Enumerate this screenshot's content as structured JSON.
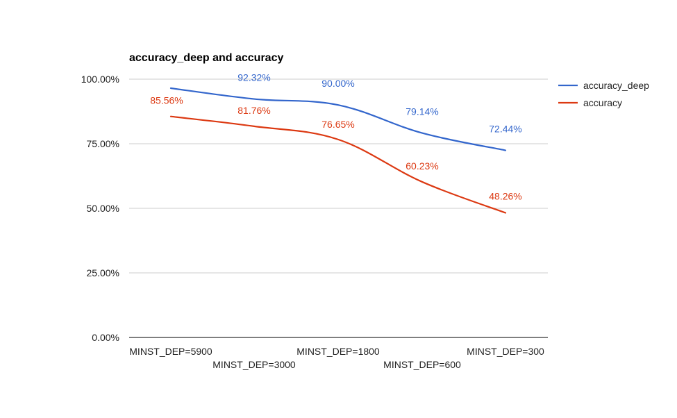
{
  "chart_data": {
    "type": "line",
    "title": "accuracy_deep and accuracy",
    "categories": [
      "MINST_DEP=5900",
      "MINST_DEP=3000",
      "MINST_DEP=1800",
      "MINST_DEP=600",
      "MINST_DEP=300"
    ],
    "series": [
      {
        "name": "accuracy_deep",
        "color": "#3366cc",
        "values": [
          96.5,
          92.32,
          90.0,
          79.14,
          72.44
        ],
        "labels": [
          "",
          "92.32%",
          "90.00%",
          "79.14%",
          "72.44%"
        ]
      },
      {
        "name": "accuracy",
        "color": "#dc3912",
        "values": [
          85.56,
          81.76,
          76.65,
          60.23,
          48.26
        ],
        "labels": [
          "85.56%",
          "81.76%",
          "76.65%",
          "60.23%",
          "48.26%"
        ]
      }
    ],
    "y_ticks": [
      "0.00%",
      "25.00%",
      "50.00%",
      "75.00%",
      "100.00%"
    ],
    "ylim": [
      0,
      100
    ],
    "grid": true,
    "legend": "right",
    "xlabel": "",
    "ylabel": ""
  }
}
